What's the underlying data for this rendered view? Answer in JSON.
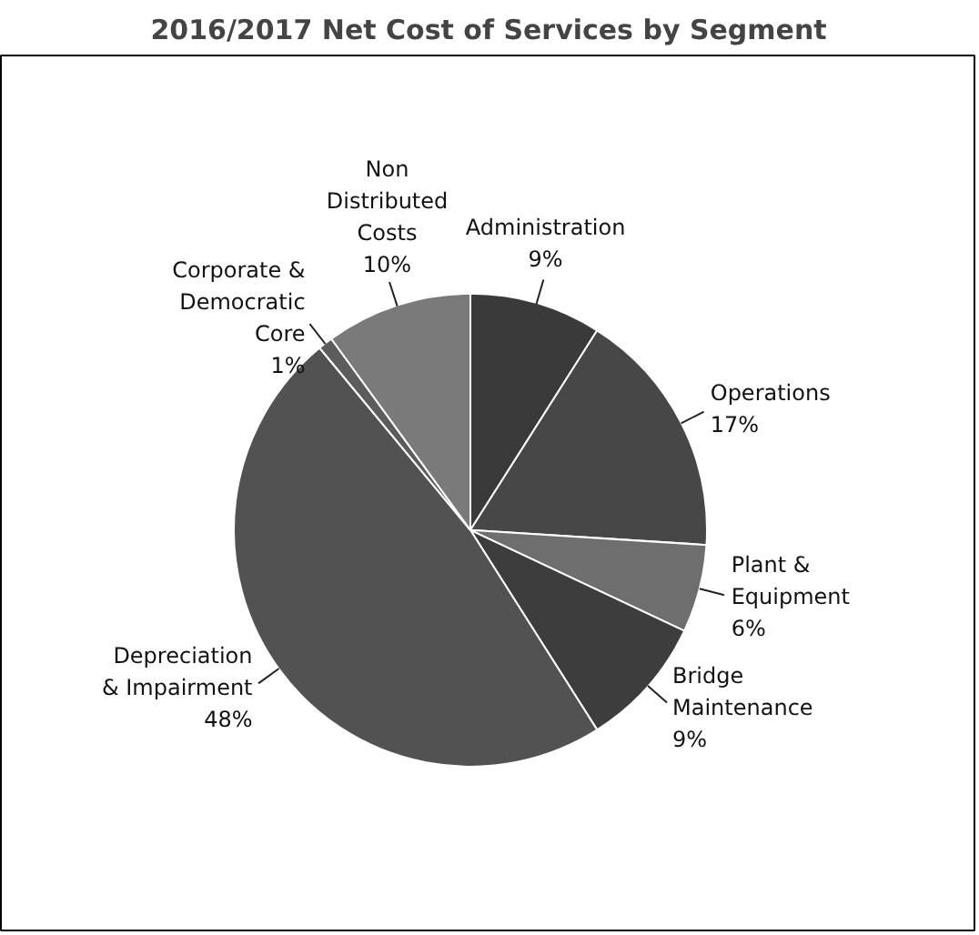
{
  "chart_data": {
    "type": "pie",
    "title": "2016/2017 Net Cost of Services by Segment",
    "categories": [
      "Administration",
      "Operations",
      "Plant & Equipment",
      "Bridge Maintenance",
      "Depreciation & Impairment",
      "Corporate & Democratic Core",
      "Non Distributed Costs"
    ],
    "values": [
      9,
      17,
      6,
      9,
      48,
      1,
      10
    ],
    "colors": [
      "#3a3a3a",
      "#474747",
      "#6e6e6e",
      "#3d3d3d",
      "#525252",
      "#5c5c5c",
      "#7a7a7a"
    ],
    "value_labels": [
      "9%",
      "17%",
      "6%",
      "9%",
      "48%",
      "1%",
      "10%"
    ]
  }
}
